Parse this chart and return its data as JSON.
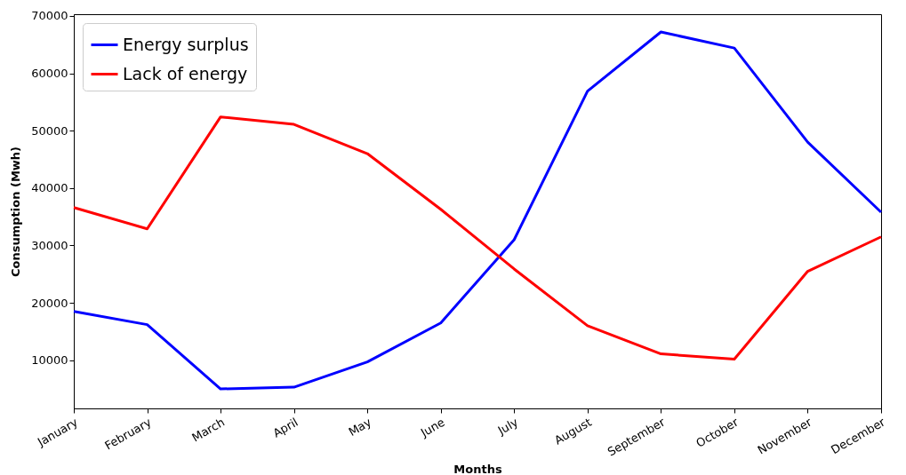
{
  "chart_data": {
    "type": "line",
    "xlabel": "Months",
    "ylabel": "Consumption (Mwh)",
    "categories": [
      "January",
      "February",
      "March",
      "April",
      "May",
      "June",
      "July",
      "August",
      "September",
      "October",
      "November",
      "December"
    ],
    "series": [
      {
        "name": "Energy surplus",
        "color": "#0000ff",
        "values": [
          18500,
          16200,
          5000,
          5300,
          9700,
          16500,
          31000,
          56900,
          67200,
          64400,
          48000,
          35800
        ]
      },
      {
        "name": "Lack of energy",
        "color": "#ff0000",
        "values": [
          36600,
          32900,
          52400,
          51100,
          46000,
          36300,
          25900,
          16000,
          11100,
          10200,
          25500,
          31500
        ]
      }
    ],
    "ylim": [
      1600,
      70300
    ],
    "yticks": [
      10000,
      20000,
      30000,
      40000,
      50000,
      60000,
      70000
    ],
    "grid": false,
    "legend": "top left",
    "marker": "none",
    "line_style": "solid"
  }
}
